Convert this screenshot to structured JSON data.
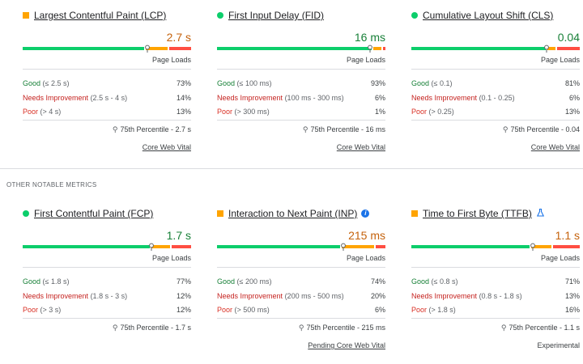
{
  "colors": {
    "good": "#0cce6b",
    "needs": "#ffa400",
    "poor": "#ff4e42",
    "value_good": "#188038",
    "value_needs": "#c5620c"
  },
  "section_label": "OTHER NOTABLE METRICS",
  "metrics": [
    {
      "title": "Largest Contentful Paint (LCP)",
      "status": "needs",
      "value": "2.7 s",
      "page_loads": "Page Loads",
      "split": [
        73,
        14,
        13
      ],
      "good_label": "Good",
      "good_range": "(≤ 2.5 s)",
      "good_pct": "73%",
      "needs_label": "Needs Improvement",
      "needs_range": "(2.5 s - 4 s)",
      "needs_pct": "14%",
      "poor_label": "Poor",
      "poor_range": "(> 4 s)",
      "poor_pct": "13%",
      "percentile": "75th Percentile - 2.7 s",
      "footer": "Core Web Vital",
      "footer_link": true
    },
    {
      "title": "First Input Delay (FID)",
      "status": "good",
      "value": "16 ms",
      "page_loads": "Page Loads",
      "split": [
        93,
        6,
        1
      ],
      "good_label": "Good",
      "good_range": "(≤ 100 ms)",
      "good_pct": "93%",
      "needs_label": "Needs Improvement",
      "needs_range": "(100 ms - 300 ms)",
      "needs_pct": "6%",
      "poor_label": "Poor",
      "poor_range": "(> 300 ms)",
      "poor_pct": "1%",
      "percentile": "75th Percentile - 16 ms",
      "footer": "Core Web Vital",
      "footer_link": true
    },
    {
      "title": "Cumulative Layout Shift (CLS)",
      "status": "good",
      "value": "0.04",
      "page_loads": "Page Loads",
      "split": [
        81,
        6,
        13
      ],
      "good_label": "Good",
      "good_range": "(≤ 0.1)",
      "good_pct": "81%",
      "needs_label": "Needs Improvement",
      "needs_range": "(0.1 - 0.25)",
      "needs_pct": "6%",
      "poor_label": "Poor",
      "poor_range": "(> 0.25)",
      "poor_pct": "13%",
      "percentile": "75th Percentile - 0.04",
      "footer": "Core Web Vital",
      "footer_link": true
    },
    {
      "title": "First Contentful Paint (FCP)",
      "status": "good",
      "value": "1.7 s",
      "page_loads": "Page Loads",
      "split": [
        77,
        12,
        12
      ],
      "good_label": "Good",
      "good_range": "(≤ 1.8 s)",
      "good_pct": "77%",
      "needs_label": "Needs Improvement",
      "needs_range": "(1.8 s - 3 s)",
      "needs_pct": "12%",
      "poor_label": "Poor",
      "poor_range": "(> 3 s)",
      "poor_pct": "12%",
      "percentile": "75th Percentile - 1.7 s",
      "footer": "",
      "footer_link": false
    },
    {
      "title": "Interaction to Next Paint (INP)",
      "status": "needs",
      "value": "215 ms",
      "page_loads": "Page Loads",
      "split": [
        74,
        20,
        6
      ],
      "icon": "info-icon",
      "good_label": "Good",
      "good_range": "(≤ 200 ms)",
      "good_pct": "74%",
      "needs_label": "Needs Improvement",
      "needs_range": "(200 ms - 500 ms)",
      "needs_pct": "20%",
      "poor_label": "Poor",
      "poor_range": "(> 500 ms)",
      "poor_pct": "6%",
      "percentile": "75th Percentile - 215 ms",
      "footer": "Pending Core Web Vital",
      "footer_link": true
    },
    {
      "title": "Time to First Byte (TTFB)",
      "status": "needs",
      "value": "1.1 s",
      "page_loads": "Page Loads",
      "split": [
        71,
        13,
        16
      ],
      "icon": "flask-icon",
      "good_label": "Good",
      "good_range": "(≤ 0.8 s)",
      "good_pct": "71%",
      "needs_label": "Needs Improvement",
      "needs_range": "(0.8 s - 1.8 s)",
      "needs_pct": "13%",
      "poor_label": "Poor",
      "poor_range": "(> 1.8 s)",
      "poor_pct": "16%",
      "percentile": "75th Percentile - 1.1 s",
      "footer": "Experimental",
      "footer_link": false
    }
  ]
}
